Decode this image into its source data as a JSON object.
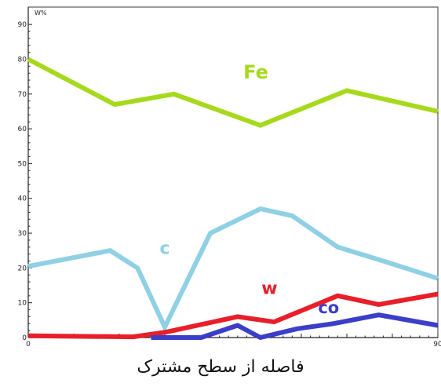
{
  "chart_data": {
    "type": "line",
    "ylabel": "W%",
    "xlabel": "فاصله از سطح مشترک",
    "xlim": [
      0,
      90
    ],
    "ylim": [
      0,
      95
    ],
    "yticks": [
      0,
      10,
      20,
      30,
      40,
      50,
      60,
      70,
      80,
      90
    ],
    "xtick_labels": [
      {
        "x": 0,
        "label": "0"
      },
      {
        "x": 90,
        "label": "90"
      }
    ],
    "grid": false,
    "series": [
      {
        "name": "Fe",
        "color": "#a6d91c",
        "points": [
          [
            0,
            80
          ],
          [
            19,
            67
          ],
          [
            32,
            70
          ],
          [
            51,
            61
          ],
          [
            70,
            71
          ],
          [
            90,
            65
          ]
        ]
      },
      {
        "name": "c",
        "color": "#8fd0e4",
        "points": [
          [
            0,
            20.5
          ],
          [
            18,
            25
          ],
          [
            24,
            20
          ],
          [
            30,
            3
          ],
          [
            40,
            30
          ],
          [
            51,
            37
          ],
          [
            58,
            35
          ],
          [
            68,
            26
          ],
          [
            78,
            22
          ],
          [
            90,
            17
          ]
        ]
      },
      {
        "name": "w",
        "color": "#e81f2a",
        "points": [
          [
            0,
            0.5
          ],
          [
            23,
            0.2
          ],
          [
            30,
            1.5
          ],
          [
            46,
            6
          ],
          [
            54,
            4.5
          ],
          [
            68,
            12
          ],
          [
            77,
            9.5
          ],
          [
            90,
            12.5
          ]
        ]
      },
      {
        "name": "co",
        "color": "#3a3ec8",
        "points": [
          [
            27,
            0
          ],
          [
            38,
            0
          ],
          [
            46,
            3.5
          ],
          [
            51,
            0
          ],
          [
            59,
            2.5
          ],
          [
            67,
            4
          ],
          [
            77,
            6.5
          ],
          [
            90,
            3.5
          ]
        ]
      }
    ],
    "annotations": [
      {
        "text": "Fe",
        "series": "Fe",
        "x": 50,
        "y": 74.5
      },
      {
        "text": "c",
        "series": "c",
        "x": 30,
        "y": 24
      },
      {
        "text": "w",
        "series": "w",
        "x": 53,
        "y": 12.5
      },
      {
        "text": "co",
        "series": "co",
        "x": 66,
        "y": 7
      }
    ]
  }
}
